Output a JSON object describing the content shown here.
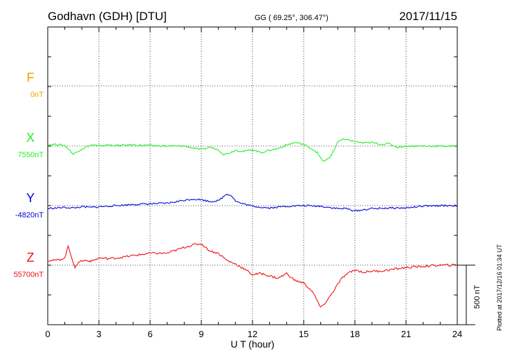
{
  "header": {
    "station": "Godhavn (GDH)  [DTU]",
    "coords": "GG ( 69.25°, 306.47°)",
    "date": "2017/11/15"
  },
  "plotted_note": "Plotted at 2017/12/16 01:34 UT",
  "chart_data": {
    "type": "line",
    "title": "Godhavn (GDH)  [DTU]",
    "xlabel": "U T (hour)",
    "xlim": [
      0,
      24
    ],
    "xticks": [
      "0",
      "3",
      "6",
      "9",
      "12",
      "15",
      "18",
      "21",
      "24"
    ],
    "scale_bar": {
      "label": "500 nT",
      "value_nT": 500
    },
    "grid": true,
    "series": [
      {
        "name": "F",
        "baseline_label": "0nT",
        "color": "#f5a000",
        "x": [],
        "values": []
      },
      {
        "name": "X",
        "baseline_label": "7550nT",
        "color": "#22ee22",
        "x": [
          0,
          0.5,
          1.0,
          1.3,
          1.5,
          1.8,
          2.2,
          2.6,
          3.0,
          3.5,
          4.0,
          5.0,
          6.0,
          7.0,
          8.0,
          8.5,
          9.0,
          9.5,
          10.0,
          10.3,
          10.6,
          11.0,
          11.5,
          12.0,
          12.5,
          13.0,
          13.5,
          14.0,
          14.5,
          15.0,
          15.5,
          15.8,
          16.0,
          16.2,
          16.5,
          16.8,
          17.0,
          17.3,
          17.6,
          18.0,
          18.5,
          19.0,
          19.5,
          20.0,
          20.5,
          21.0,
          22.0,
          23.0,
          24.0
        ],
        "values": [
          10,
          15,
          5,
          -35,
          -70,
          -40,
          -10,
          10,
          0,
          10,
          5,
          10,
          5,
          0,
          0,
          -15,
          -30,
          -10,
          -30,
          -70,
          -60,
          -35,
          -45,
          -30,
          -55,
          -35,
          -20,
          10,
          30,
          15,
          -25,
          -55,
          -105,
          -130,
          -100,
          -30,
          40,
          55,
          50,
          40,
          25,
          30,
          15,
          20,
          -10,
          0,
          0,
          0,
          0
        ]
      },
      {
        "name": "Y",
        "baseline_label": "-4820nT",
        "color": "#0000dd",
        "x": [
          0,
          0.5,
          1.0,
          1.5,
          2.0,
          2.5,
          3.0,
          4.0,
          5.0,
          6.0,
          7.0,
          8.0,
          8.5,
          9.0,
          9.5,
          10.0,
          10.5,
          10.8,
          11.0,
          11.3,
          11.6,
          12.0,
          13.0,
          14.0,
          15.0,
          16.0,
          16.5,
          17.0,
          17.5,
          18.0,
          18.5,
          19.0,
          20.0,
          21.0,
          22.0,
          23.0,
          24.0
        ],
        "values": [
          -25,
          -20,
          -15,
          -20,
          -10,
          -15,
          -10,
          0,
          10,
          15,
          20,
          45,
          55,
          50,
          35,
          40,
          100,
          80,
          40,
          20,
          10,
          -5,
          -20,
          -5,
          0,
          -5,
          -15,
          -25,
          -25,
          -45,
          -35,
          -25,
          -20,
          -20,
          -5,
          0,
          0
        ]
      },
      {
        "name": "Z",
        "baseline_label": "55700nT",
        "color": "#ee1111",
        "x": [
          0,
          0.5,
          1.0,
          1.2,
          1.4,
          1.6,
          1.8,
          2.2,
          2.6,
          3.0,
          3.5,
          4.0,
          5.0,
          6.0,
          7.0,
          8.0,
          8.5,
          9.0,
          9.5,
          10.0,
          10.5,
          11.0,
          11.5,
          12.0,
          12.5,
          13.0,
          13.5,
          14.0,
          14.5,
          15.0,
          15.5,
          15.8,
          16.0,
          16.3,
          16.6,
          17.0,
          17.3,
          17.6,
          18.0,
          18.5,
          19.0,
          19.5,
          20.0,
          20.5,
          21.0,
          22.0,
          23.0,
          24.0
        ],
        "values": [
          40,
          40,
          60,
          160,
          70,
          -30,
          30,
          40,
          35,
          60,
          55,
          60,
          80,
          100,
          100,
          150,
          170,
          180,
          120,
          100,
          40,
          10,
          -30,
          -80,
          -70,
          -90,
          -110,
          -70,
          -130,
          -150,
          -220,
          -300,
          -360,
          -310,
          -250,
          -160,
          -100,
          -70,
          -40,
          -60,
          -50,
          -50,
          -40,
          -30,
          -20,
          -10,
          0,
          0
        ]
      }
    ]
  }
}
